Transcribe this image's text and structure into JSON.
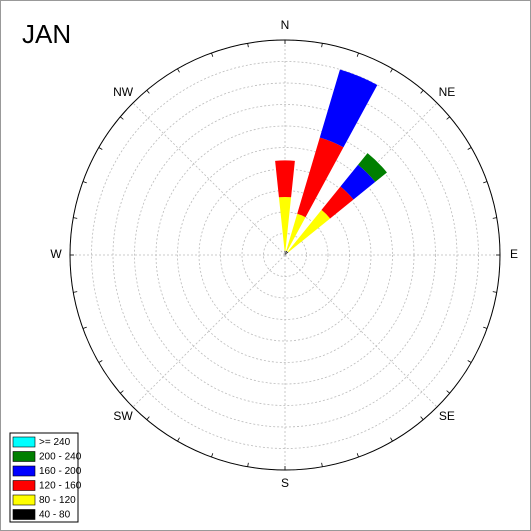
{
  "chart_data": {
    "type": "windrose",
    "title": "JAN",
    "direction_labels": [
      "N",
      "NE",
      "E",
      "SE",
      "S",
      "SW",
      "W",
      "NW"
    ],
    "x": [
      0,
      22.5,
      45
    ],
    "rlim": [
      0,
      10
    ],
    "rticks": [
      1,
      2,
      3,
      4,
      5,
      6,
      7,
      8,
      9,
      10
    ],
    "grid": true,
    "legend": "bottom-left",
    "series": [
      {
        "name": ">= 240",
        "color": "#00ffff",
        "values": [
          0,
          0,
          0
        ]
      },
      {
        "name": "200 - 240",
        "color": "#007f00",
        "values": [
          0,
          0,
          0.7
        ]
      },
      {
        "name": "160 - 200",
        "color": "#0000ff",
        "values": [
          0,
          3.3,
          1.3
        ]
      },
      {
        "name": "120 - 160",
        "color": "#ff0000",
        "values": [
          1.7,
          3.7,
          1.4
        ]
      },
      {
        "name": "80 - 120",
        "color": "#ffff00",
        "values": [
          2.5,
          1.8,
          2.5
        ]
      },
      {
        "name": "40 - 80",
        "color": "#000000",
        "values": [
          0.2,
          0.2,
          0.2
        ]
      }
    ]
  }
}
